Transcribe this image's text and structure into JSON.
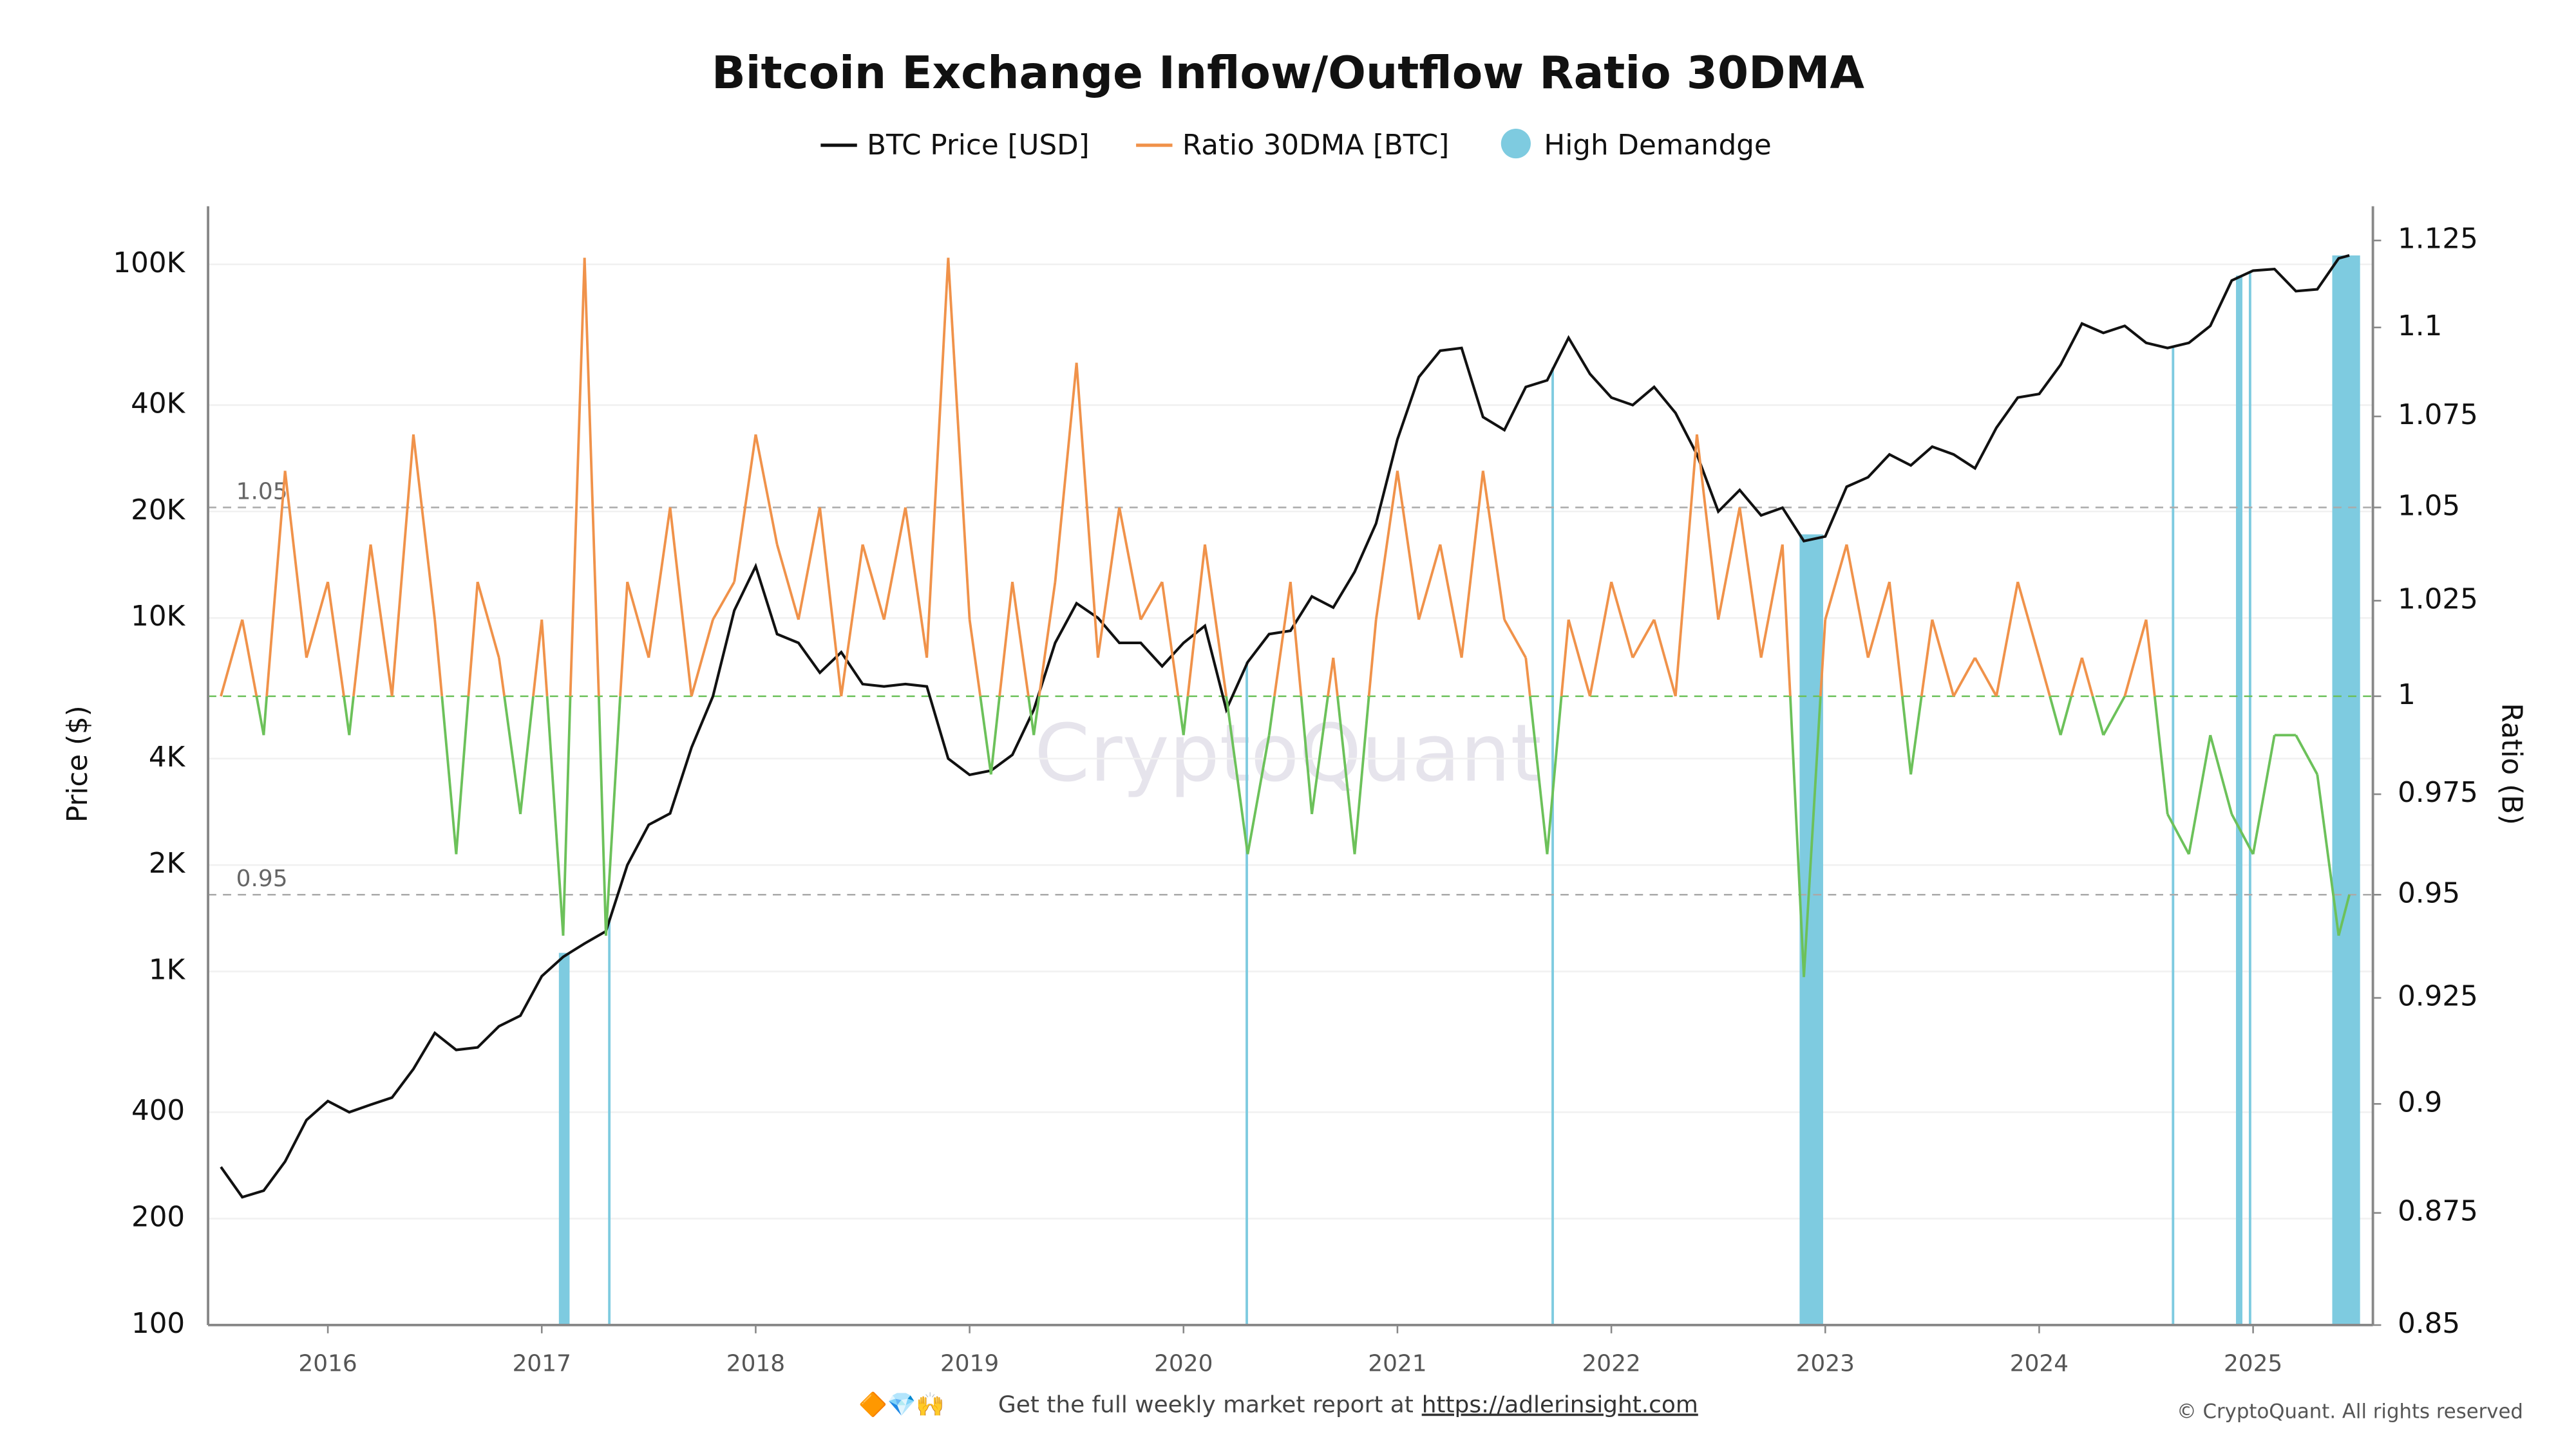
{
  "chart_data": {
    "type": "dual-axis-line",
    "title": "Bitcoin Exchange Inflow/Outflow Ratio 30DMA",
    "ylabel": "Price ($)",
    "y2label": "Ratio (B)",
    "watermark": "CryptoQuant",
    "footer": {
      "emoji": "🔶💎🙌",
      "text": "Get the full weekly market report at",
      "link": "https://adlerinsight.com"
    },
    "copyright": "© CryptoQuant. All rights reserved",
    "xlim": [
      2015.44,
      2025.56
    ],
    "xticks": [
      2016,
      2017,
      2018,
      2019,
      2020,
      2021,
      2022,
      2023,
      2024,
      2025
    ],
    "ylog": true,
    "ylim": [
      100,
      146000
    ],
    "yticks": [
      100,
      200,
      400,
      {
        "value": 1000,
        "label": "1K"
      },
      {
        "value": 2000,
        "label": "2K"
      },
      {
        "value": 4000,
        "label": "4K"
      },
      {
        "value": 10000,
        "label": "10K"
      },
      {
        "value": 20000,
        "label": "20K"
      },
      {
        "value": 40000,
        "label": "40K"
      },
      {
        "value": 100000,
        "label": "100K"
      }
    ],
    "y2log": true,
    "y2lim": [
      0.85,
      1.135
    ],
    "y2ticks": [
      0.85,
      0.875,
      0.9,
      0.925,
      0.95,
      0.975,
      1,
      1.025,
      1.05,
      1.075,
      1.1,
      1.125
    ],
    "reference_lines": [
      1.05,
      0.95
    ],
    "threshold": 1,
    "threshold_color": "#6cc15a",
    "x": [
      2015.5,
      2015.6,
      2015.7,
      2015.8,
      2015.9,
      2016.0,
      2016.1,
      2016.2,
      2016.3,
      2016.4,
      2016.5,
      2016.6,
      2016.7,
      2016.8,
      2016.9,
      2017.0,
      2017.1,
      2017.2,
      2017.3,
      2017.4,
      2017.5,
      2017.6,
      2017.7,
      2017.8,
      2017.9,
      2018.0,
      2018.1,
      2018.2,
      2018.3,
      2018.4,
      2018.5,
      2018.6,
      2018.7,
      2018.8,
      2018.9,
      2019.0,
      2019.1,
      2019.2,
      2019.3,
      2019.4,
      2019.5,
      2019.6,
      2019.7,
      2019.8,
      2019.9,
      2020.0,
      2020.1,
      2020.2,
      2020.3,
      2020.4,
      2020.5,
      2020.6,
      2020.7,
      2020.8,
      2020.9,
      2021.0,
      2021.1,
      2021.2,
      2021.3,
      2021.4,
      2021.5,
      2021.6,
      2021.7,
      2021.8,
      2021.9,
      2022.0,
      2022.1,
      2022.2,
      2022.3,
      2022.4,
      2022.5,
      2022.6,
      2022.7,
      2022.8,
      2022.9,
      2023.0,
      2023.1,
      2023.2,
      2023.3,
      2023.4,
      2023.5,
      2023.6,
      2023.7,
      2023.8,
      2023.9,
      2024.0,
      2024.1,
      2024.2,
      2024.3,
      2024.4,
      2024.5,
      2024.6,
      2024.7,
      2024.8,
      2024.9,
      2025.0,
      2025.1,
      2025.2,
      2025.3,
      2025.4,
      2025.45
    ],
    "series": [
      {
        "name": "BTC Price [USD]",
        "color": "#111111",
        "axis": "y",
        "values": [
          280,
          230,
          240,
          290,
          380,
          430,
          400,
          420,
          440,
          530,
          670,
          600,
          610,
          700,
          750,
          970,
          1100,
          1200,
          1300,
          2000,
          2600,
          2800,
          4300,
          6000,
          10500,
          14000,
          9000,
          8500,
          7000,
          8000,
          6500,
          6400,
          6500,
          6400,
          4000,
          3600,
          3700,
          4100,
          5500,
          8500,
          11000,
          10000,
          8500,
          8500,
          7300,
          8500,
          9500,
          5500,
          7500,
          9000,
          9200,
          11500,
          10700,
          13500,
          18500,
          32000,
          48000,
          57000,
          58000,
          37000,
          34000,
          45000,
          47000,
          62000,
          49000,
          42000,
          40000,
          45000,
          38000,
          29000,
          20000,
          23000,
          19500,
          20500,
          16500,
          17000,
          23500,
          25000,
          29000,
          27000,
          30500,
          29000,
          26500,
          34500,
          42000,
          43000,
          52000,
          68000,
          64000,
          67000,
          60000,
          58000,
          60000,
          67000,
          90000,
          96000,
          97000,
          84000,
          85000,
          104000,
          106000
        ]
      },
      {
        "name": "Ratio 30DMA [BTC]",
        "color": "#f0924a",
        "axis": "y2",
        "values": [
          1.0,
          1.02,
          0.99,
          1.06,
          1.01,
          1.03,
          0.99,
          1.04,
          1.0,
          1.07,
          1.02,
          0.96,
          1.03,
          1.01,
          0.97,
          1.02,
          0.94,
          1.12,
          0.94,
          1.03,
          1.01,
          1.05,
          1.0,
          1.02,
          1.03,
          1.07,
          1.04,
          1.02,
          1.05,
          1.0,
          1.04,
          1.02,
          1.05,
          1.01,
          1.12,
          1.02,
          0.98,
          1.03,
          0.99,
          1.03,
          1.09,
          1.01,
          1.05,
          1.02,
          1.03,
          0.99,
          1.04,
          1.0,
          0.96,
          0.99,
          1.03,
          0.97,
          1.01,
          0.96,
          1.02,
          1.06,
          1.02,
          1.04,
          1.01,
          1.06,
          1.02,
          1.01,
          0.96,
          1.02,
          1.0,
          1.03,
          1.01,
          1.02,
          1.0,
          1.07,
          1.02,
          1.05,
          1.01,
          1.04,
          0.93,
          1.02,
          1.04,
          1.01,
          1.03,
          0.98,
          1.02,
          1.0,
          1.01,
          1.0,
          1.03,
          1.01,
          0.99,
          1.01,
          0.99,
          1.0,
          1.02,
          0.97,
          0.96,
          0.99,
          0.97,
          0.96,
          0.99,
          0.99,
          0.98,
          0.94,
          0.95
        ]
      }
    ],
    "bands_name": "High Demandge",
    "bands_color": "#7ecbe0",
    "bands": [
      [
        2017.08,
        2017.13
      ],
      [
        2017.31,
        2017.32
      ],
      [
        2020.29,
        2020.3
      ],
      [
        2021.72,
        2021.73
      ],
      [
        2022.88,
        2022.99
      ],
      [
        2024.62,
        2024.63
      ],
      [
        2024.92,
        2024.95
      ],
      [
        2024.98,
        2024.99
      ],
      [
        2025.37,
        2025.5
      ]
    ]
  }
}
